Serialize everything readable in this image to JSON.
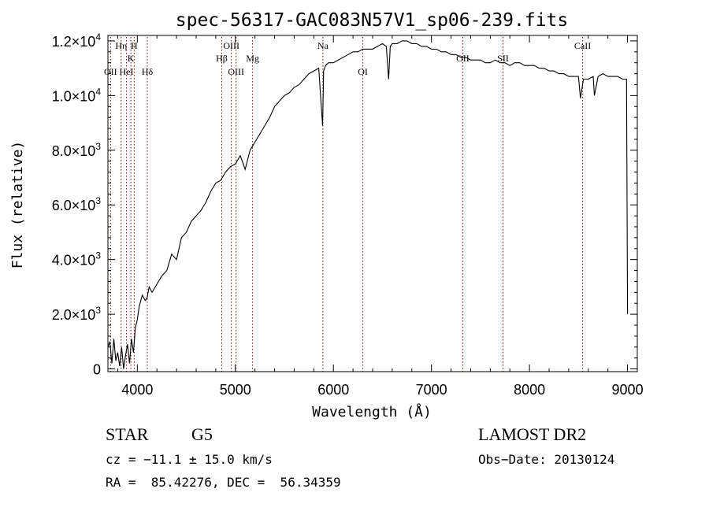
{
  "chart_data": {
    "type": "line",
    "title": "spec-56317-GAC083N57V1_sp06-239.fits",
    "xlabel": "Wavelength (Å)",
    "ylabel": "Flux (relative)",
    "xlim": [
      3700,
      9100
    ],
    "ylim": [
      -100,
      12200
    ],
    "x_ticks": [
      4000,
      5000,
      6000,
      7000,
      8000,
      9000
    ],
    "x_tick_labels": [
      "4000",
      "5000",
      "6000",
      "7000",
      "8000",
      "9000"
    ],
    "y_ticks": [
      0,
      2000,
      4000,
      6000,
      8000,
      10000,
      12000
    ],
    "y_tick_labels": [
      {
        "mantissa": "0",
        "exp": ""
      },
      {
        "mantissa": "2.0×10",
        "exp": "3"
      },
      {
        "mantissa": "4.0×10",
        "exp": "3"
      },
      {
        "mantissa": "6.0×10",
        "exp": "3"
      },
      {
        "mantissa": "8.0×10",
        "exp": "3"
      },
      {
        "mantissa": "1.0×10",
        "exp": "4"
      },
      {
        "mantissa": "1.2×10",
        "exp": "4"
      }
    ],
    "grid": false,
    "line_color": "#000000",
    "marker_color": "#8b0000",
    "spectrum": {
      "x": [
        3700,
        3720,
        3740,
        3760,
        3780,
        3800,
        3820,
        3840,
        3860,
        3880,
        3900,
        3920,
        3940,
        3960,
        3980,
        4000,
        4020,
        4050,
        4080,
        4100,
        4120,
        4150,
        4200,
        4250,
        4300,
        4350,
        4400,
        4450,
        4500,
        4550,
        4600,
        4650,
        4700,
        4750,
        4800,
        4850,
        4900,
        4950,
        5000,
        5050,
        5100,
        5150,
        5200,
        5250,
        5300,
        5350,
        5400,
        5450,
        5500,
        5550,
        5600,
        5650,
        5700,
        5750,
        5800,
        5850,
        5890,
        5900,
        5920,
        5950,
        6000,
        6050,
        6100,
        6150,
        6200,
        6250,
        6300,
        6350,
        6400,
        6450,
        6500,
        6540,
        6563,
        6580,
        6600,
        6650,
        6700,
        6750,
        6800,
        6850,
        6900,
        6950,
        7000,
        7050,
        7100,
        7150,
        7200,
        7250,
        7300,
        7350,
        7400,
        7450,
        7500,
        7550,
        7600,
        7650,
        7700,
        7750,
        7800,
        7850,
        7900,
        7950,
        8000,
        8050,
        8100,
        8150,
        8200,
        8250,
        8300,
        8350,
        8400,
        8450,
        8500,
        8520,
        8550,
        8600,
        8650,
        8662,
        8700,
        8750,
        8800,
        8850,
        8900,
        8950,
        8990,
        9000
      ],
      "y": [
        800,
        1000,
        200,
        1100,
        300,
        600,
        100,
        800,
        0,
        500,
        900,
        200,
        1100,
        600,
        1500,
        1800,
        2300,
        2700,
        2500,
        2600,
        3000,
        2800,
        3100,
        3400,
        3600,
        4200,
        4000,
        4800,
        5000,
        5400,
        5600,
        5800,
        6100,
        6500,
        6800,
        6900,
        7200,
        7400,
        7500,
        7800,
        7300,
        8000,
        8300,
        8600,
        8900,
        9200,
        9600,
        9800,
        10000,
        10100,
        10300,
        10400,
        10600,
        10800,
        10900,
        11000,
        8900,
        10900,
        11100,
        11200,
        11200,
        11300,
        11400,
        11500,
        11600,
        11600,
        11700,
        11700,
        11700,
        11800,
        11900,
        11800,
        10600,
        11800,
        11900,
        11900,
        12000,
        12000,
        11900,
        11900,
        11800,
        11800,
        11700,
        11700,
        11600,
        11600,
        11500,
        11500,
        11400,
        11400,
        11300,
        11300,
        11300,
        11200,
        11200,
        11300,
        11200,
        11200,
        11100,
        11200,
        11200,
        11100,
        11100,
        11100,
        11000,
        11000,
        10900,
        10900,
        10800,
        10800,
        10700,
        10700,
        10700,
        9900,
        10600,
        10600,
        10700,
        10000,
        10700,
        10800,
        10700,
        10700,
        10700,
        10600,
        10600,
        2000
      ]
    },
    "lines": [
      {
        "label": "OII",
        "x": 3727,
        "row": 2
      },
      {
        "label": "Hη",
        "x": 3835,
        "row": 0
      },
      {
        "label": "HeI",
        "x": 3889,
        "row": 2
      },
      {
        "label": "K",
        "x": 3934,
        "row": 1
      },
      {
        "label": "H",
        "x": 3968,
        "row": 0
      },
      {
        "label": "Hδ",
        "x": 4102,
        "row": 2
      },
      {
        "label": "Hβ",
        "x": 4861,
        "row": 1
      },
      {
        "label": "OIII",
        "x": 4959,
        "row": 0
      },
      {
        "label": "OIII",
        "x": 5007,
        "row": 2
      },
      {
        "label": "Mg",
        "x": 5175,
        "row": 1
      },
      {
        "label": "Na",
        "x": 5893,
        "row": 0
      },
      {
        "label": "OI",
        "x": 6300,
        "row": 2
      },
      {
        "label": "OII",
        "x": 7320,
        "row": 1
      },
      {
        "label": "SII",
        "x": 7730,
        "row": 1
      },
      {
        "label": "CaII",
        "x": 8542,
        "row": 0
      }
    ]
  },
  "info": {
    "object_class": "STAR",
    "subclass": "G5",
    "survey": "LAMOST DR2",
    "cz": "cz = −11.1 ± 15.0 km/s",
    "obs_date": "Obs−Date: 20130124",
    "coords": "RA =  85.42276, DEC =  56.34359"
  }
}
